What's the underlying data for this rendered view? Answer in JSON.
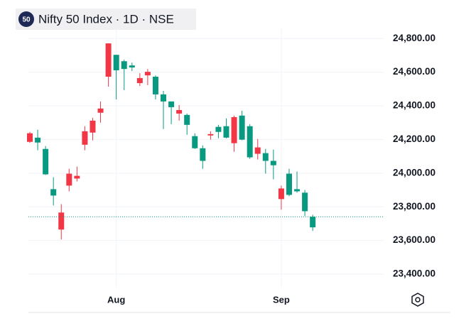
{
  "chart_data": {
    "type": "candlestick",
    "title": "Nifty 50 Index · 1D · NSE",
    "badge": "50",
    "categories": [
      null,
      null,
      null,
      null,
      null,
      null,
      null,
      null,
      null,
      null,
      null,
      "Aug",
      null,
      null,
      null,
      null,
      null,
      null,
      null,
      null,
      null,
      null,
      null,
      null,
      null,
      null,
      null,
      null,
      null,
      null,
      null,
      null,
      "Sep",
      null,
      null,
      null,
      null
    ],
    "open": [
      24237,
      24182,
      23993,
      23867,
      23766,
      23997,
      23984,
      24249,
      24312,
      24384,
      24771,
      24611,
      24619,
      24628,
      24565,
      24602,
      24468,
      24426,
      24392,
      24375,
      24287,
      24148,
      24073,
      24232,
      24245,
      24211,
      24333,
      24199,
      24094,
      24153,
      24073,
      24047,
      23909,
      23871,
      23892,
      23774,
      23678
    ],
    "high": [
      24245,
      24258,
      24161,
      23976,
      23816,
      24026,
      24039,
      24279,
      24329,
      24426,
      24771,
      24703,
      24674,
      24657,
      24594,
      24619,
      24581,
      24489,
      24426,
      24405,
      24354,
      24237,
      24165,
      24249,
      24287,
      24325,
      24342,
      24371,
      24291,
      24203,
      24144,
      24140,
      23926,
      24026,
      24010,
      23900,
      23753
    ],
    "low": [
      24180,
      24136,
      23989,
      23808,
      23606,
      23892,
      23951,
      24136,
      24195,
      24300,
      24514,
      24438,
      24493,
      24607,
      24518,
      24523,
      24438,
      24262,
      24291,
      24312,
      24228,
      24144,
      24026,
      24199,
      24207,
      24207,
      24127,
      24195,
      24085,
      24081,
      23997,
      23963,
      23783,
      23863,
      23884,
      23745,
      23657
    ],
    "close": [
      24186,
      24211,
      24144,
      23905,
      23665,
      23926,
      23968,
      24169,
      24241,
      24359,
      24573,
      24703,
      24665,
      24640,
      24535,
      24581,
      24573,
      24468,
      24426,
      24354,
      24346,
      24220,
      24148,
      24224,
      24275,
      24279,
      24178,
      24342,
      24279,
      24115,
      24119,
      24073,
      23846,
      23997,
      23905,
      23884,
      23741
    ],
    "up_color": "#089981",
    "down_color": "#f23645",
    "ylim": [
      23320,
      24860
    ],
    "yticks": [
      {
        "value": 23400,
        "label": "23,400.00"
      },
      {
        "value": 23600,
        "label": "23,600.00"
      },
      {
        "value": 23800,
        "label": "23,800.00"
      },
      {
        "value": 24000,
        "label": "24,000.00"
      },
      {
        "value": 24200,
        "label": "24,200.00"
      },
      {
        "value": 24400,
        "label": "24,400.00"
      },
      {
        "value": 24600,
        "label": "24,600.00"
      },
      {
        "value": 24800,
        "label": "24,800.00"
      }
    ],
    "grid": true
  }
}
